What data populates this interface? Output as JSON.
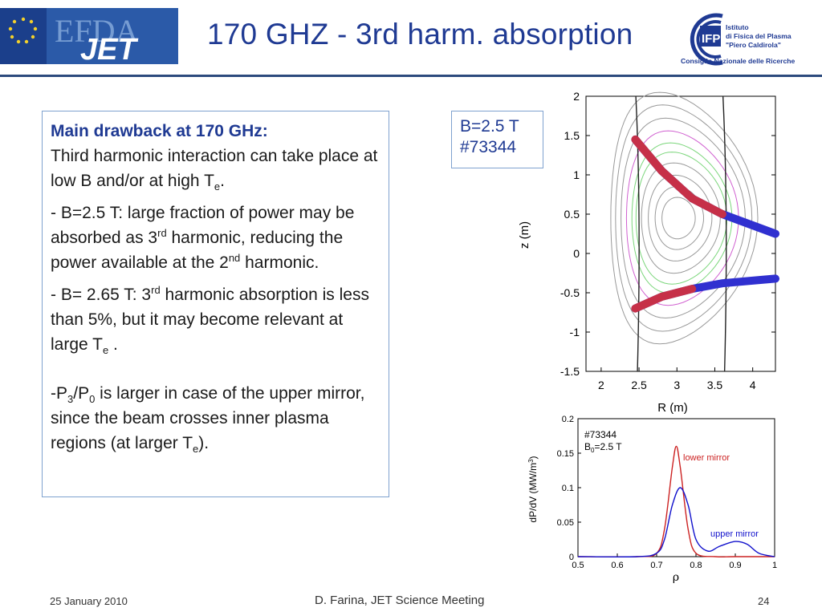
{
  "header": {
    "logo_left_text": "EFDA JET",
    "title": "170 GHZ - 3rd harm. absorption",
    "logo_right": {
      "lines": [
        "Istituto",
        "di Fisica del Plasma",
        "\"Piero Caldirola\""
      ],
      "org": "Consiglio Nazionale delle Ricerche",
      "mark": "IFP"
    }
  },
  "text_box": {
    "heading": "Main drawback at 170 GHz:",
    "p1_a": "Third harmonic interaction can take place at low B and/or at high T",
    "p1_sub": "e",
    "p1_end": ".",
    "p2_a": "- B=2.5 T: large fraction of power may be absorbed as 3",
    "p2_sup": "rd",
    "p2_b": " harmonic, reducing the power available at the 2",
    "p2_sup2": "nd",
    "p2_c": " harmonic.",
    "p3_a": "- B= 2.65 T: 3",
    "p3_sup": "rd",
    "p3_b": " harmonic absorption is less than 5%, but it may become relevant at large T",
    "p3_sub": "e",
    "p3_c": " .",
    "p4_a": "-P",
    "p4_sub1": "3",
    "p4_b": "/P",
    "p4_sub2": "0",
    "p4_c": " is larger in case of the upper mirror, since the beam crosses inner plasma regions (at larger T",
    "p4_sub3": "e",
    "p4_d": ")."
  },
  "b_tag": {
    "line1": "B=2.5 T",
    "line2": "#73344"
  },
  "chart_data": [
    {
      "type": "line",
      "xlabel": "R (m)",
      "ylabel": "z (m)",
      "xlim": [
        1.8,
        4.3
      ],
      "ylim": [
        -1.5,
        2
      ],
      "xticks": [
        "2",
        "2.5",
        "3",
        "3.5",
        "4"
      ],
      "yticks": [
        "2",
        "1.5",
        "1",
        "0.5",
        "0",
        "-0.5",
        "-1",
        "-1.5"
      ],
      "description_series": [
        {
          "name": "upper beam",
          "x": [
            2.45,
            2.8,
            3.2,
            3.6,
            4.3
          ],
          "y": [
            1.45,
            1.05,
            0.7,
            0.5,
            0.25
          ]
        },
        {
          "name": "lower beam",
          "x": [
            2.45,
            2.8,
            3.2,
            3.6,
            4.3
          ],
          "y": [
            -0.7,
            -0.55,
            -0.45,
            -0.38,
            -0.32
          ]
        }
      ],
      "vertical_lines": [
        2.5,
        3.65
      ]
    },
    {
      "type": "line",
      "xlabel": "ρ",
      "ylabel": "dP/dV (MW/m3)",
      "xlim": [
        0.5,
        1
      ],
      "ylim": [
        0,
        0.2
      ],
      "xticks": [
        "0.5",
        "0.6",
        "0.7",
        "0.8",
        "0.9",
        "1"
      ],
      "yticks": [
        "0.2",
        "0.15",
        "0.1",
        "0.05",
        "0"
      ],
      "annotation_shot": "#73344",
      "annotation_b": "=2.5 T",
      "series": [
        {
          "name": "lower mirror",
          "color": "#cc2222",
          "x": [
            0.5,
            0.65,
            0.7,
            0.72,
            0.74,
            0.75,
            0.76,
            0.78,
            0.8,
            0.85,
            0.9,
            1.0
          ],
          "y": [
            0,
            0,
            0.005,
            0.04,
            0.13,
            0.16,
            0.13,
            0.04,
            0.005,
            0,
            0,
            0
          ]
        },
        {
          "name": "upper mirror",
          "color": "#1111cc",
          "x": [
            0.5,
            0.65,
            0.7,
            0.72,
            0.74,
            0.76,
            0.78,
            0.8,
            0.83,
            0.86,
            0.9,
            0.93,
            0.96,
            1.0
          ],
          "y": [
            0,
            0,
            0.005,
            0.025,
            0.075,
            0.1,
            0.075,
            0.025,
            0.008,
            0.015,
            0.022,
            0.018,
            0.005,
            0
          ]
        }
      ]
    }
  ],
  "footer": {
    "date": "25 January 2010",
    "author": "D. Farina, JET Science Meeting",
    "page": "24"
  }
}
